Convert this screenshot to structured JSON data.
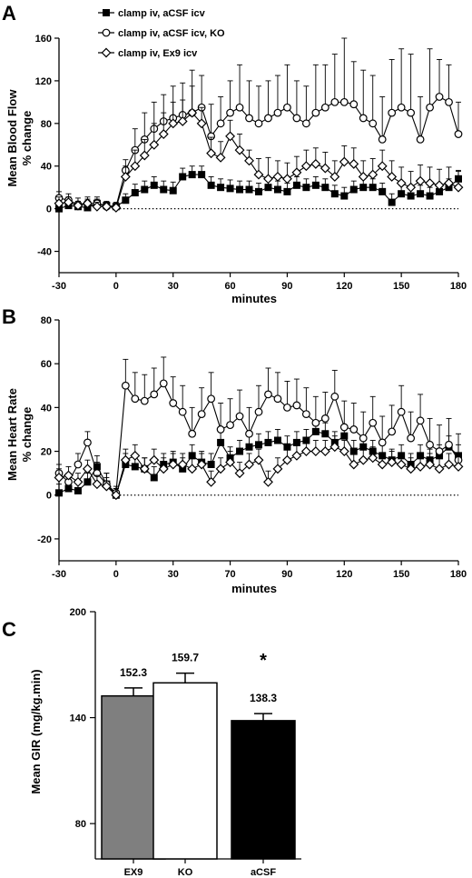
{
  "chart_data": [
    {
      "panel": "A",
      "type": "line",
      "xlabel": "minutes",
      "ylabel_lines": [
        "Mean Blood Flow",
        "% change"
      ],
      "xlim": [
        -30,
        180
      ],
      "ylim": [
        -60,
        160
      ],
      "xticks": [
        -30,
        0,
        30,
        60,
        90,
        120,
        150,
        180
      ],
      "yticks": [
        -40,
        0,
        40,
        80,
        120,
        160
      ],
      "x": [
        -30,
        -25,
        -20,
        -15,
        -10,
        -5,
        0,
        5,
        10,
        15,
        20,
        25,
        30,
        35,
        40,
        45,
        50,
        55,
        60,
        65,
        70,
        75,
        80,
        85,
        90,
        95,
        100,
        105,
        110,
        115,
        120,
        125,
        130,
        135,
        140,
        145,
        150,
        155,
        160,
        165,
        170,
        175,
        180
      ],
      "series": [
        {
          "name": "clamp iv, aCSF icv",
          "marker": "square-filled",
          "values": [
            0,
            3,
            2,
            1,
            5,
            3,
            2,
            8,
            15,
            18,
            22,
            18,
            17,
            30,
            32,
            32,
            22,
            20,
            19,
            18,
            18,
            16,
            20,
            18,
            16,
            22,
            20,
            22,
            20,
            14,
            12,
            18,
            20,
            20,
            16,
            6,
            14,
            12,
            14,
            12,
            16,
            20,
            28
          ],
          "err": [
            6,
            5,
            4,
            4,
            4,
            4,
            3,
            6,
            8,
            8,
            8,
            8,
            8,
            8,
            8,
            8,
            8,
            8,
            8,
            8,
            8,
            8,
            8,
            8,
            8,
            8,
            8,
            8,
            8,
            8,
            8,
            8,
            8,
            8,
            8,
            8,
            8,
            8,
            8,
            8,
            8,
            8,
            8
          ]
        },
        {
          "name": "clamp iv, aCSF icv, KO",
          "marker": "circle-open",
          "values": [
            10,
            8,
            4,
            5,
            5,
            2,
            2,
            36,
            55,
            65,
            75,
            82,
            85,
            88,
            90,
            95,
            68,
            80,
            90,
            95,
            85,
            80,
            85,
            90,
            95,
            85,
            80,
            90,
            95,
            100,
            100,
            98,
            85,
            80,
            65,
            90,
            95,
            90,
            65,
            95,
            105,
            100,
            70
          ],
          "err": [
            6,
            6,
            6,
            6,
            6,
            4,
            4,
            10,
            20,
            25,
            25,
            25,
            30,
            30,
            40,
            30,
            30,
            25,
            30,
            40,
            35,
            35,
            35,
            35,
            40,
            35,
            35,
            45,
            40,
            45,
            60,
            40,
            45,
            45,
            40,
            50,
            55,
            55,
            40,
            55,
            35,
            35,
            30
          ]
        },
        {
          "name": "clamp iv, Ex9 icv",
          "marker": "diamond-open",
          "values": [
            5,
            6,
            3,
            5,
            2,
            2,
            1,
            30,
            40,
            50,
            60,
            70,
            80,
            82,
            90,
            80,
            52,
            48,
            68,
            55,
            45,
            32,
            28,
            30,
            28,
            34,
            40,
            42,
            38,
            30,
            44,
            42,
            30,
            32,
            40,
            30,
            24,
            20,
            26,
            24,
            22,
            24,
            20
          ],
          "err": [
            6,
            5,
            4,
            4,
            4,
            4,
            3,
            10,
            15,
            15,
            20,
            20,
            20,
            20,
            25,
            15,
            15,
            15,
            15,
            15,
            10,
            15,
            20,
            15,
            15,
            15,
            15,
            15,
            15,
            15,
            15,
            15,
            15,
            15,
            15,
            15,
            15,
            15,
            15,
            15,
            15,
            15,
            15
          ]
        }
      ]
    },
    {
      "panel": "B",
      "type": "line",
      "xlabel": "minutes",
      "ylabel_lines": [
        "Mean Heart Rate",
        "% change"
      ],
      "xlim": [
        -30,
        180
      ],
      "ylim": [
        -30,
        80
      ],
      "xticks": [
        -30,
        0,
        30,
        70,
        90,
        120,
        150,
        180
      ],
      "yticks": [
        -20,
        0,
        20,
        40,
        60,
        80
      ],
      "x": [
        -30,
        -25,
        -20,
        -15,
        -10,
        -5,
        0,
        5,
        10,
        15,
        20,
        25,
        30,
        35,
        40,
        45,
        50,
        55,
        60,
        65,
        70,
        75,
        80,
        85,
        90,
        95,
        100,
        105,
        110,
        115,
        120,
        125,
        130,
        135,
        140,
        145,
        150,
        155,
        160,
        165,
        170,
        175,
        180
      ],
      "series": [
        {
          "name": "clamp iv, aCSF icv",
          "marker": "square-filled",
          "values": [
            1,
            3,
            2,
            6,
            13,
            5,
            0,
            14,
            13,
            12,
            8,
            14,
            15,
            12,
            18,
            15,
            14,
            24,
            17,
            20,
            22,
            23,
            24,
            25,
            22,
            24,
            25,
            29,
            28,
            24,
            27,
            20,
            22,
            20,
            18,
            16,
            18,
            14,
            18,
            16,
            18,
            22,
            18
          ],
          "err": [
            4,
            4,
            4,
            4,
            5,
            5,
            3,
            5,
            5,
            5,
            5,
            5,
            5,
            5,
            5,
            5,
            5,
            5,
            5,
            5,
            5,
            5,
            5,
            5,
            5,
            5,
            5,
            5,
            5,
            5,
            5,
            5,
            5,
            5,
            5,
            5,
            5,
            5,
            5,
            5,
            5,
            5,
            5
          ]
        },
        {
          "name": "clamp iv, aCSF icv, KO",
          "marker": "circle-open",
          "values": [
            10,
            6,
            14,
            24,
            10,
            5,
            1,
            50,
            44,
            43,
            46,
            51,
            42,
            38,
            28,
            37,
            44,
            30,
            32,
            36,
            28,
            38,
            46,
            44,
            40,
            41,
            37,
            33,
            35,
            45,
            31,
            30,
            26,
            33,
            24,
            29,
            38,
            26,
            34,
            23,
            20,
            23,
            16
          ],
          "err": [
            4,
            4,
            5,
            5,
            5,
            5,
            3,
            12,
            12,
            12,
            12,
            12,
            12,
            12,
            12,
            12,
            12,
            12,
            12,
            12,
            12,
            12,
            12,
            12,
            12,
            12,
            12,
            12,
            12,
            12,
            12,
            12,
            12,
            12,
            12,
            12,
            12,
            12,
            12,
            12,
            12,
            12,
            12
          ]
        },
        {
          "name": "clamp iv, Ex9 icv",
          "marker": "diamond-open",
          "values": [
            8,
            9,
            6,
            12,
            5,
            4,
            0,
            16,
            18,
            12,
            16,
            12,
            14,
            14,
            12,
            14,
            6,
            12,
            15,
            10,
            14,
            16,
            6,
            12,
            16,
            18,
            20,
            20,
            20,
            22,
            20,
            14,
            16,
            17,
            14,
            15,
            14,
            12,
            13,
            14,
            12,
            14,
            13
          ],
          "err": [
            4,
            4,
            4,
            4,
            4,
            4,
            3,
            5,
            5,
            5,
            5,
            5,
            5,
            5,
            5,
            5,
            5,
            5,
            5,
            5,
            5,
            5,
            5,
            5,
            5,
            5,
            5,
            5,
            5,
            5,
            5,
            5,
            5,
            5,
            5,
            5,
            5,
            5,
            5,
            5,
            5,
            5,
            5
          ]
        }
      ]
    },
    {
      "panel": "C",
      "type": "bar",
      "ylabel": "Mean GIR (mg/kg.min)",
      "ylim": [
        60,
        200
      ],
      "yticks": [
        80,
        140,
        200
      ],
      "categories": [
        "EX9",
        "KO",
        "aCSF"
      ],
      "values": [
        152.3,
        159.7,
        138.3
      ],
      "err": [
        4.5,
        5.5,
        4.0
      ],
      "value_labels": [
        "152.3",
        "159.7",
        "138.3"
      ],
      "colors": [
        "#7f7f7f",
        "#ffffff",
        "#000000"
      ],
      "annotation": "*"
    }
  ],
  "legend": [
    {
      "label": "clamp iv, aCSF icv",
      "marker": "square-filled"
    },
    {
      "label": "clamp iv, aCSF icv, KO",
      "marker": "circle-open"
    },
    {
      "label": "clamp iv, Ex9 icv",
      "marker": "diamond-open"
    }
  ]
}
